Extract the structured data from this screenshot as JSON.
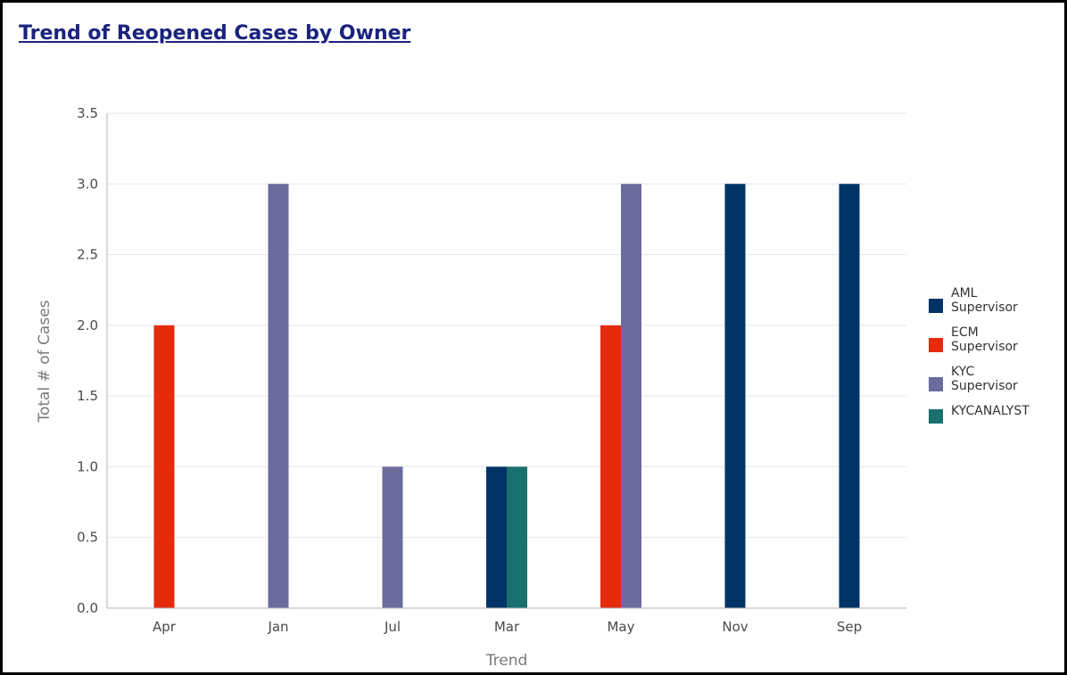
{
  "title": "Trend of Reopened Cases by Owner",
  "chart_data": {
    "type": "bar",
    "title": "Trend of Reopened Cases by Owner",
    "xlabel": "Trend",
    "ylabel": "Total # of Cases",
    "ylim": [
      0,
      3.5
    ],
    "yticks": [
      "0.0",
      "0.5",
      "1.0",
      "1.5",
      "2.0",
      "2.5",
      "3.0",
      "3.5"
    ],
    "categories": [
      "Apr",
      "Jan",
      "Jul",
      "Mar",
      "May",
      "Nov",
      "Sep"
    ],
    "grid": true,
    "legend_position": "right",
    "series": [
      {
        "name": "AML Supervisor",
        "label_lines": [
          "AML",
          "Supervisor"
        ],
        "color": "#003366",
        "values": [
          null,
          null,
          null,
          1,
          null,
          3,
          3
        ]
      },
      {
        "name": "ECM Supervisor",
        "label_lines": [
          "ECM",
          "Supervisor"
        ],
        "color": "#e52b0c",
        "values": [
          2,
          null,
          null,
          null,
          2,
          null,
          null
        ]
      },
      {
        "name": "KYC Supervisor",
        "label_lines": [
          "KYC",
          "Supervisor"
        ],
        "color": "#6b6b9e",
        "values": [
          null,
          3,
          1,
          null,
          3,
          null,
          null
        ]
      },
      {
        "name": "KYCANALYST",
        "label_lines": [
          "KYCANALYST"
        ],
        "color": "#19706e",
        "values": [
          null,
          null,
          null,
          1,
          null,
          null,
          null
        ]
      }
    ]
  }
}
